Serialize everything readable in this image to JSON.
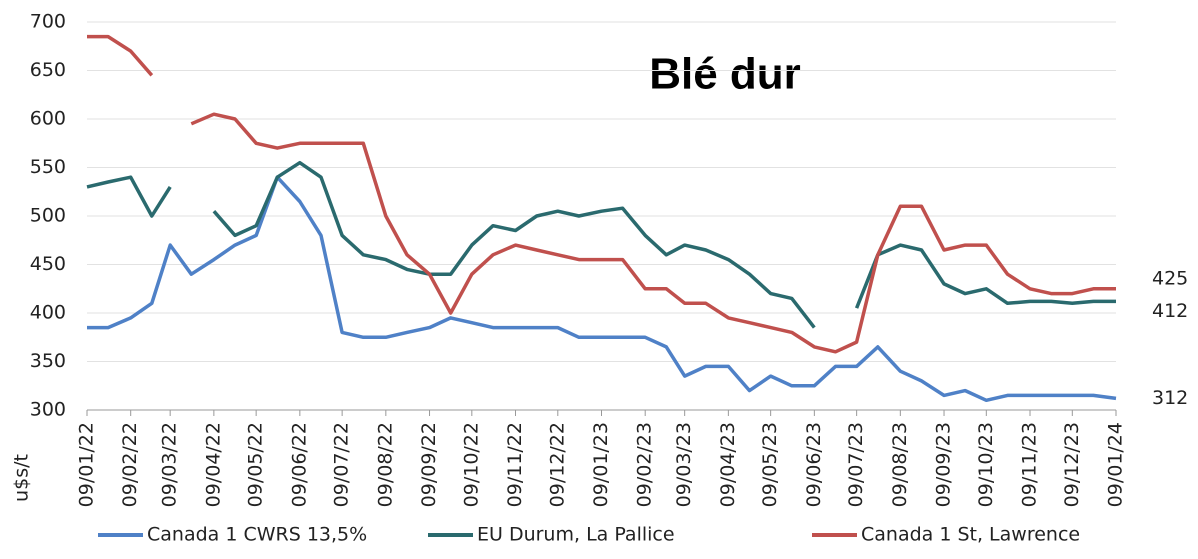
{
  "chart_data": {
    "type": "line",
    "title": "Blé dur",
    "y_label": "u$s/t",
    "x": [
      "2022-01-09",
      "2022-01-24",
      "2022-02-09",
      "2022-02-24",
      "2022-03-09",
      "2022-03-24",
      "2022-04-09",
      "2022-04-24",
      "2022-05-09",
      "2022-05-24",
      "2022-06-09",
      "2022-06-24",
      "2022-07-09",
      "2022-07-24",
      "2022-08-09",
      "2022-08-24",
      "2022-09-09",
      "2022-09-24",
      "2022-10-09",
      "2022-10-24",
      "2022-11-09",
      "2022-11-24",
      "2022-12-09",
      "2022-12-24",
      "2023-01-09",
      "2023-01-24",
      "2023-02-09",
      "2023-02-24",
      "2023-03-09",
      "2023-03-24",
      "2023-04-09",
      "2023-04-24",
      "2023-05-09",
      "2023-05-24",
      "2023-06-09",
      "2023-06-24",
      "2023-07-09",
      "2023-07-24",
      "2023-08-09",
      "2023-08-24",
      "2023-09-09",
      "2023-09-24",
      "2023-10-09",
      "2023-10-24",
      "2023-11-09",
      "2023-11-24",
      "2023-12-09",
      "2023-12-24",
      "2024-01-09"
    ],
    "series": [
      {
        "name": "Canada 1 CWRS 13,5%",
        "color": "#4f81c7",
        "values": [
          385,
          385,
          395,
          410,
          470,
          440,
          455,
          470,
          480,
          540,
          515,
          480,
          380,
          375,
          375,
          380,
          385,
          395,
          390,
          385,
          385,
          385,
          385,
          375,
          375,
          375,
          375,
          365,
          335,
          345,
          345,
          320,
          335,
          325,
          325,
          345,
          345,
          365,
          340,
          330,
          315,
          320,
          310,
          315,
          315,
          315,
          315,
          315,
          312
        ]
      },
      {
        "name": "EU Durum, La Pallice",
        "color": "#2a6a6e",
        "values": [
          530,
          535,
          540,
          500,
          530,
          null,
          505,
          480,
          490,
          540,
          555,
          540,
          480,
          460,
          455,
          445,
          440,
          440,
          470,
          490,
          485,
          500,
          505,
          500,
          505,
          508,
          480,
          460,
          470,
          465,
          455,
          440,
          420,
          415,
          385,
          null,
          405,
          460,
          470,
          465,
          430,
          420,
          425,
          410,
          412,
          412,
          410,
          412,
          412
        ]
      },
      {
        "name": "Canada 1 St, Lawrence",
        "color": "#c0504d",
        "values": [
          685,
          685,
          670,
          645,
          null,
          595,
          605,
          600,
          575,
          570,
          575,
          575,
          575,
          575,
          500,
          460,
          440,
          400,
          440,
          460,
          470,
          465,
          460,
          455,
          455,
          455,
          425,
          425,
          410,
          410,
          395,
          390,
          385,
          380,
          365,
          360,
          370,
          460,
          510,
          510,
          465,
          470,
          470,
          440,
          425,
          420,
          420,
          425,
          425
        ]
      }
    ],
    "xlim": [
      "2022-01-09",
      "2024-01-09"
    ],
    "xticks": [
      {
        "value": "2022-01-09",
        "label": "09/01/22"
      },
      {
        "value": "2022-02-09",
        "label": "09/02/22"
      },
      {
        "value": "2022-03-09",
        "label": "09/03/22"
      },
      {
        "value": "2022-04-09",
        "label": "09/04/22"
      },
      {
        "value": "2022-05-09",
        "label": "09/05/22"
      },
      {
        "value": "2022-06-09",
        "label": "09/06/22"
      },
      {
        "value": "2022-07-09",
        "label": "09/07/22"
      },
      {
        "value": "2022-08-09",
        "label": "09/08/22"
      },
      {
        "value": "2022-09-09",
        "label": "09/09/22"
      },
      {
        "value": "2022-10-09",
        "label": "09/10/22"
      },
      {
        "value": "2022-11-09",
        "label": "09/11/22"
      },
      {
        "value": "2022-12-09",
        "label": "09/12/22"
      },
      {
        "value": "2023-01-09",
        "label": "09/01/23"
      },
      {
        "value": "2023-02-09",
        "label": "09/02/23"
      },
      {
        "value": "2023-03-09",
        "label": "09/03/23"
      },
      {
        "value": "2023-04-09",
        "label": "09/04/23"
      },
      {
        "value": "2023-05-09",
        "label": "09/05/23"
      },
      {
        "value": "2023-06-09",
        "label": "09/06/23"
      },
      {
        "value": "2023-07-09",
        "label": "09/07/23"
      },
      {
        "value": "2023-08-09",
        "label": "09/08/23"
      },
      {
        "value": "2023-09-09",
        "label": "09/09/23"
      },
      {
        "value": "2023-10-09",
        "label": "09/10/23"
      },
      {
        "value": "2023-11-09",
        "label": "09/11/23"
      },
      {
        "value": "2023-12-09",
        "label": "09/12/23"
      },
      {
        "value": "2024-01-09",
        "label": "09/01/24"
      }
    ],
    "ylim": [
      300,
      700
    ],
    "yticks": [
      300,
      350,
      400,
      450,
      500,
      550,
      600,
      650,
      700
    ],
    "grid": true
  }
}
